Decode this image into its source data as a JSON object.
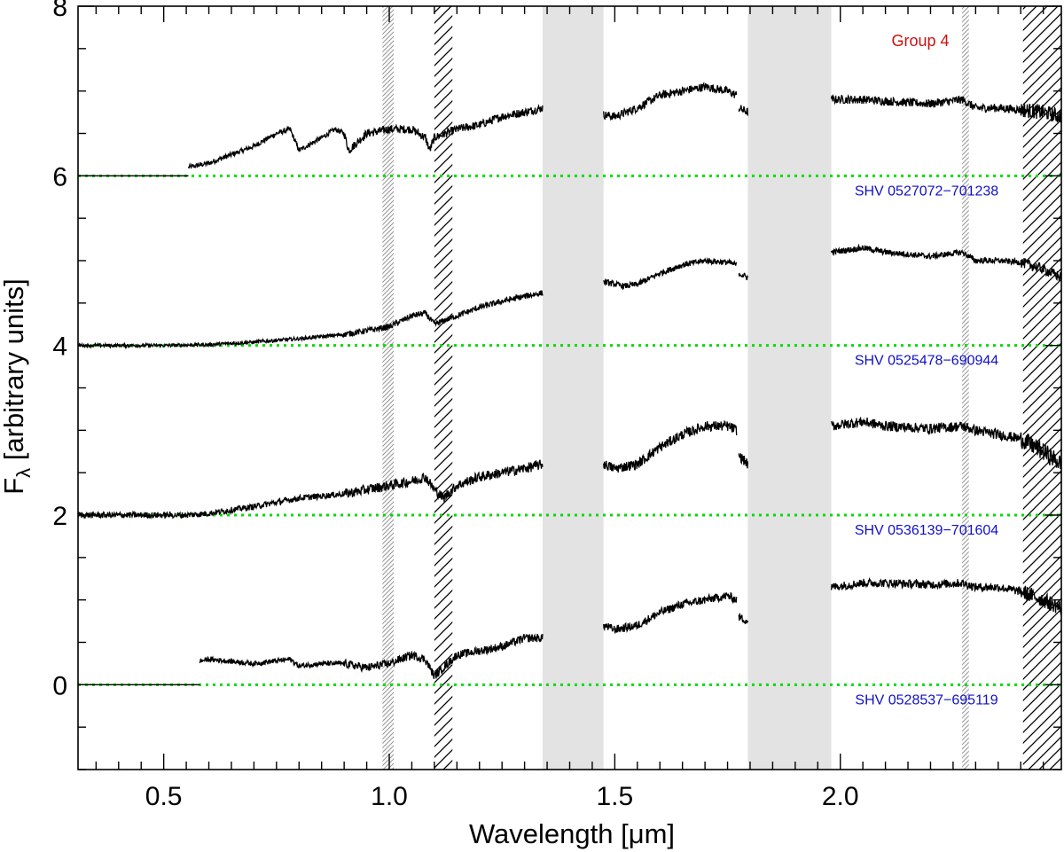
{
  "chart_data": {
    "type": "line",
    "group_label": "Group 4",
    "xlabel": "Wavelength [μm]",
    "ylabel_main": "F",
    "ylabel_sub": "λ",
    "ylabel_rest": " [arbitrary units]",
    "xlim": [
      0.31,
      2.49
    ],
    "ylim": [
      -1,
      8
    ],
    "x_ticks": [
      {
        "value": 0.5,
        "label": "0.5"
      },
      {
        "value": 1.0,
        "label": "1.0"
      },
      {
        "value": 1.5,
        "label": "1.5"
      },
      {
        "value": 2.0,
        "label": "2.0"
      }
    ],
    "x_minor_step": 0.05,
    "y_ticks": [
      {
        "value": 0,
        "label": "0"
      },
      {
        "value": 2,
        "label": "2"
      },
      {
        "value": 4,
        "label": "4"
      },
      {
        "value": 6,
        "label": "6"
      },
      {
        "value": 8,
        "label": "8"
      }
    ],
    "y_minor_step": 0.5,
    "gray_bands": [
      [
        1.34,
        1.475
      ],
      [
        1.795,
        1.98
      ]
    ],
    "hatch_bands": [
      [
        0.985,
        1.01
      ],
      [
        1.1,
        1.14
      ],
      [
        2.27,
        2.285
      ],
      [
        2.405,
        2.49
      ]
    ],
    "colors": {
      "zero_line": "#00dd00",
      "spectrum": "#000000",
      "band": "#e3e3e3",
      "object_label": "#1010c8",
      "group_label": "#cc1010"
    },
    "series": [
      {
        "name": "SHV 0527072−701238",
        "offset": 6,
        "noise": 0.05,
        "segments": [
          {
            "x": [
              0.31,
              0.555
            ],
            "y": [
              6.0,
              6.0
            ]
          },
          {
            "x": [
              0.555,
              0.6,
              0.65,
              0.7,
              0.75,
              0.78,
              0.8,
              0.85,
              0.88,
              0.9,
              0.91,
              0.95,
              1.0,
              1.05,
              1.08,
              1.09,
              1.1,
              1.15,
              1.2,
              1.25,
              1.3,
              1.34
            ],
            "y": [
              6.1,
              6.15,
              6.25,
              6.35,
              6.5,
              6.55,
              6.3,
              6.45,
              6.55,
              6.5,
              6.3,
              6.5,
              6.55,
              6.55,
              6.45,
              6.3,
              6.45,
              6.55,
              6.6,
              6.7,
              6.75,
              6.8
            ]
          },
          {
            "x": [
              1.475,
              1.5,
              1.55,
              1.6,
              1.65,
              1.7,
              1.75,
              1.77
            ],
            "y": [
              6.72,
              6.7,
              6.8,
              6.95,
              7.0,
              7.05,
              7.0,
              6.95
            ]
          },
          {
            "x": [
              1.775,
              1.795
            ],
            "y": [
              6.8,
              6.75
            ]
          },
          {
            "x": [
              1.98,
              2.05,
              2.1,
              2.2,
              2.27,
              2.3,
              2.35,
              2.4,
              2.45,
              2.49
            ],
            "y": [
              6.9,
              6.9,
              6.88,
              6.85,
              6.9,
              6.8,
              6.8,
              6.78,
              6.75,
              6.7
            ]
          }
        ]
      },
      {
        "name": "SHV 0525478−690944",
        "offset": 4,
        "noise": 0.035,
        "segments": [
          {
            "x": [
              0.31,
              0.4,
              0.5,
              0.6,
              0.7,
              0.8,
              0.9,
              1.0,
              1.05,
              1.08,
              1.1,
              1.15,
              1.2,
              1.25,
              1.3,
              1.34
            ],
            "y": [
              4.0,
              4.0,
              4.0,
              4.01,
              4.04,
              4.08,
              4.13,
              4.22,
              4.35,
              4.38,
              4.25,
              4.35,
              4.45,
              4.52,
              4.58,
              4.62
            ]
          },
          {
            "x": [
              1.475,
              1.52,
              1.55,
              1.6,
              1.65,
              1.7,
              1.75,
              1.77
            ],
            "y": [
              4.75,
              4.7,
              4.72,
              4.85,
              4.95,
              5.0,
              4.98,
              4.95
            ]
          },
          {
            "x": [
              1.775,
              1.795
            ],
            "y": [
              4.85,
              4.8
            ]
          },
          {
            "x": [
              1.98,
              2.05,
              2.1,
              2.2,
              2.27,
              2.3,
              2.35,
              2.4,
              2.45,
              2.49
            ],
            "y": [
              5.1,
              5.15,
              5.1,
              5.05,
              5.1,
              5.0,
              5.0,
              4.98,
              4.9,
              4.8
            ]
          }
        ]
      },
      {
        "name": "SHV 0536139−701604",
        "offset": 2,
        "noise": 0.06,
        "segments": [
          {
            "x": [
              0.31,
              0.55,
              0.6,
              0.7,
              0.8,
              0.9,
              1.0,
              1.05,
              1.08,
              1.1,
              1.12,
              1.15,
              1.2,
              1.25,
              1.3,
              1.34
            ],
            "y": [
              2.0,
              2.0,
              2.02,
              2.1,
              2.2,
              2.25,
              2.35,
              2.4,
              2.45,
              2.3,
              2.2,
              2.35,
              2.45,
              2.5,
              2.55,
              2.6
            ]
          },
          {
            "x": [
              1.475,
              1.5,
              1.55,
              1.6,
              1.65,
              1.7,
              1.75,
              1.77
            ],
            "y": [
              2.6,
              2.55,
              2.6,
              2.8,
              2.95,
              3.05,
              3.05,
              3.0
            ]
          },
          {
            "x": [
              1.775,
              1.795
            ],
            "y": [
              2.7,
              2.6
            ]
          },
          {
            "x": [
              1.98,
              2.05,
              2.1,
              2.2,
              2.27,
              2.3,
              2.35,
              2.4,
              2.45,
              2.49
            ],
            "y": [
              3.05,
              3.1,
              3.05,
              3.02,
              3.05,
              3.0,
              2.95,
              2.9,
              2.75,
              2.6
            ]
          }
        ]
      },
      {
        "name": "SHV 0528537−695119",
        "offset": 0,
        "noise": 0.05,
        "segments": [
          {
            "x": [
              0.31,
              0.58
            ],
            "y": [
              0.0,
              0.0
            ]
          },
          {
            "x": [
              0.58,
              0.6,
              0.7,
              0.78,
              0.8,
              0.85,
              0.9,
              0.95,
              1.0,
              1.05,
              1.08,
              1.1,
              1.12,
              1.15,
              1.2,
              1.25,
              1.3,
              1.34
            ],
            "y": [
              0.28,
              0.3,
              0.25,
              0.3,
              0.22,
              0.25,
              0.25,
              0.2,
              0.25,
              0.35,
              0.3,
              0.1,
              0.2,
              0.35,
              0.4,
              0.45,
              0.55,
              0.55
            ]
          },
          {
            "x": [
              1.475,
              1.5,
              1.55,
              1.6,
              1.65,
              1.7,
              1.75,
              1.77
            ],
            "y": [
              0.7,
              0.65,
              0.7,
              0.85,
              0.95,
              1.0,
              1.05,
              1.0
            ]
          },
          {
            "x": [
              1.775,
              1.795
            ],
            "y": [
              0.8,
              0.75
            ]
          },
          {
            "x": [
              1.98,
              2.05,
              2.1,
              2.2,
              2.27,
              2.3,
              2.35,
              2.4,
              2.45,
              2.49
            ],
            "y": [
              1.15,
              1.2,
              1.2,
              1.18,
              1.2,
              1.15,
              1.15,
              1.1,
              1.0,
              0.9
            ]
          }
        ]
      }
    ]
  }
}
